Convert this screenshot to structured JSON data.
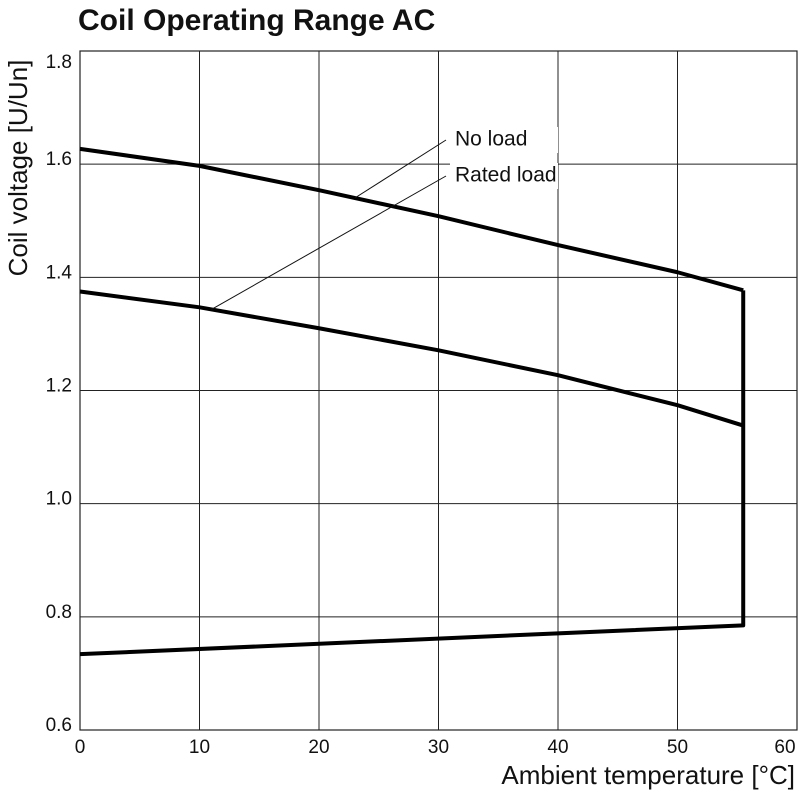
{
  "chart_data": {
    "type": "line",
    "title": "Coil Operating Range AC",
    "x_label": "Ambient temperature [°C]",
    "y_label": "Coil voltage [U/Un]",
    "xlim": [
      0,
      60
    ],
    "xticks": [
      0,
      10,
      20,
      30,
      40,
      50,
      60
    ],
    "ylim": [
      0.6,
      1.8
    ],
    "yticks": [
      0.6,
      0.8,
      {
        "value": 1,
        "label": "1.0"
      },
      1.2,
      1.4,
      1.6,
      1.8
    ],
    "grid": true,
    "series": [
      {
        "name": "No load",
        "color": "#000000",
        "x": [
          0,
          10,
          20,
          30,
          40,
          50,
          55.5
        ],
        "values": [
          1.627,
          1.597,
          1.554,
          1.508,
          1.457,
          1.409,
          1.377
        ]
      },
      {
        "name": "Rated load",
        "color": "#000000",
        "x": [
          0,
          10,
          20,
          30,
          40,
          50,
          55.5
        ],
        "values": [
          1.375,
          1.347,
          1.31,
          1.271,
          1.227,
          1.174,
          1.138
        ]
      },
      {
        "color": "#000000",
        "x": [
          0,
          55.5,
          55.5
        ],
        "values": [
          0.734,
          0.785,
          1.377
        ]
      }
    ]
  }
}
